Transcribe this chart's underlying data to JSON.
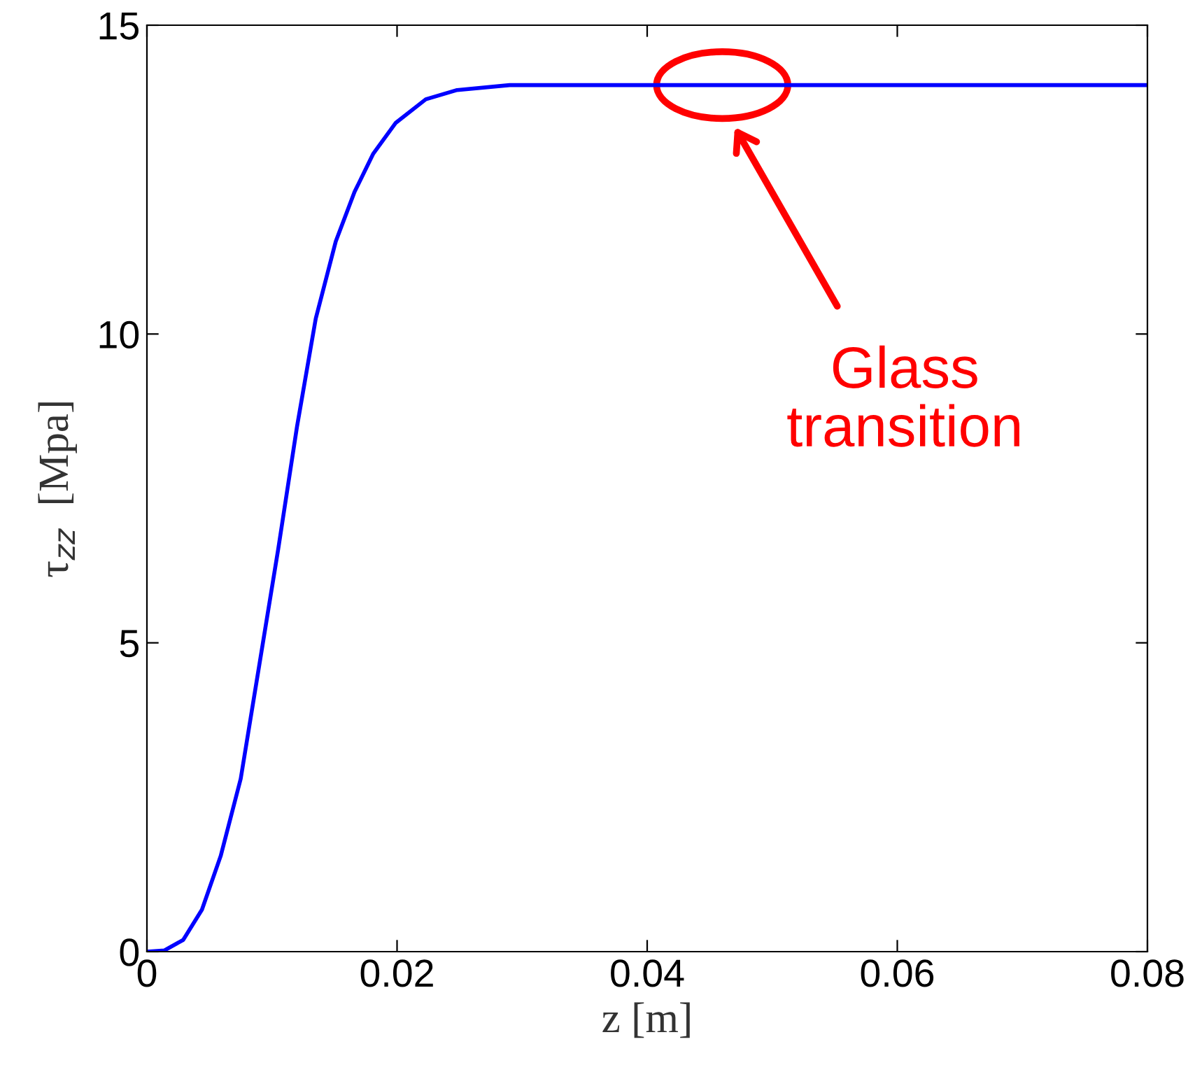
{
  "chart_data": {
    "type": "line",
    "xlabel": "z [m]",
    "ylabel": "τ$_{zz}$  [Mpa]",
    "x": [
      0,
      0.0014,
      0.0029,
      0.0044,
      0.0059,
      0.0075,
      0.009,
      0.0105,
      0.012,
      0.0135,
      0.0151,
      0.0166,
      0.0181,
      0.0199,
      0.0223,
      0.0248,
      0.029,
      0.04,
      0.06,
      0.08
    ],
    "series": [
      {
        "color": "#0000ff",
        "values": [
          0,
          0.02,
          0.19,
          0.68,
          1.55,
          2.8,
          4.66,
          6.52,
          8.5,
          10.25,
          11.5,
          12.3,
          12.92,
          13.42,
          13.8,
          13.95,
          14.03,
          14.03,
          14.03,
          14.03
        ]
      }
    ],
    "xlim": [
      0,
      0.08
    ],
    "ylim": [
      0,
      15
    ],
    "xticks": [
      0,
      0.02,
      0.04,
      0.06,
      0.08
    ],
    "yticks": [
      0,
      5,
      10,
      15
    ],
    "grid": false,
    "legend": false,
    "marker": "none",
    "line_style": "solid",
    "annotations": [
      "Glass\ntransition"
    ]
  }
}
